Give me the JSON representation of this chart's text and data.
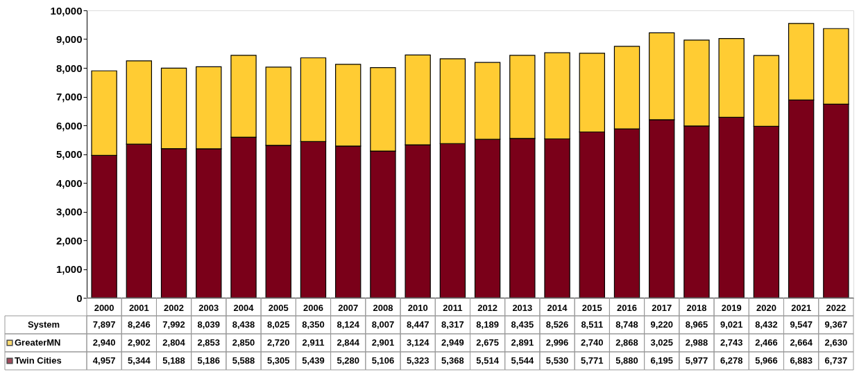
{
  "chart_data": {
    "type": "bar",
    "stacked": true,
    "categories": [
      "2000",
      "2001",
      "2002",
      "2003",
      "2004",
      "2005",
      "2006",
      "2007",
      "2008",
      "2010",
      "2011",
      "2012",
      "2013",
      "2014",
      "2015",
      "2016",
      "2017",
      "2018",
      "2019",
      "2020",
      "2021",
      "2022"
    ],
    "series": [
      {
        "name": "Twin Cities",
        "color": "#7a0019",
        "values": [
          4957,
          5344,
          5188,
          5186,
          5588,
          5305,
          5439,
          5280,
          5106,
          5323,
          5368,
          5514,
          5544,
          5530,
          5771,
          5880,
          6195,
          5977,
          6278,
          5966,
          6883,
          6737
        ],
        "value_labels": [
          "4,957",
          "5,344",
          "5,188",
          "5,186",
          "5,588",
          "5,305",
          "5,439",
          "5,280",
          "5,106",
          "5,323",
          "5,368",
          "5,514",
          "5,544",
          "5,530",
          "5,771",
          "5,880",
          "6,195",
          "5,977",
          "6,278",
          "5,966",
          "6,883",
          "6,737"
        ]
      },
      {
        "name": "GreaterMN",
        "color": "#ffcc33",
        "values": [
          2940,
          2902,
          2804,
          2853,
          2850,
          2720,
          2911,
          2844,
          2901,
          3124,
          2949,
          2675,
          2891,
          2996,
          2740,
          2868,
          3025,
          2988,
          2743,
          2466,
          2664,
          2630
        ],
        "value_labels": [
          "2,940",
          "2,902",
          "2,804",
          "2,853",
          "2,850",
          "2,720",
          "2,911",
          "2,844",
          "2,901",
          "3,124",
          "2,949",
          "2,675",
          "2,891",
          "2,996",
          "2,740",
          "2,868",
          "3,025",
          "2,988",
          "2,743",
          "2,466",
          "2,664",
          "2,630"
        ]
      }
    ],
    "annotations": [
      "System"
    ],
    "totals": [
      "7,897",
      "8,246",
      "7,992",
      "8,039",
      "8,438",
      "8,025",
      "8,350",
      "8,124",
      "8,007",
      "8,447",
      "8,317",
      "8,189",
      "8,435",
      "8,526",
      "8,511",
      "8,748",
      "9,220",
      "8,965",
      "9,021",
      "8,432",
      "9,547",
      "9,367"
    ],
    "ylim": [
      0,
      10000
    ],
    "yticks": [
      0,
      {
        "value": 1000,
        "label": "1,000"
      },
      {
        "value": 2000,
        "label": "2,000"
      },
      {
        "value": 3000,
        "label": "3,000"
      },
      {
        "value": 4000,
        "label": "4,000"
      },
      {
        "value": 5000,
        "label": "5,000"
      },
      {
        "value": 6000,
        "label": "6,000"
      },
      {
        "value": 7000,
        "label": "7,000"
      },
      {
        "value": 8000,
        "label": "8,000"
      },
      {
        "value": 9000,
        "label": "9,000"
      },
      {
        "value": 10000,
        "label": "10,000"
      }
    ],
    "grid": false,
    "legend": "bottom left"
  }
}
